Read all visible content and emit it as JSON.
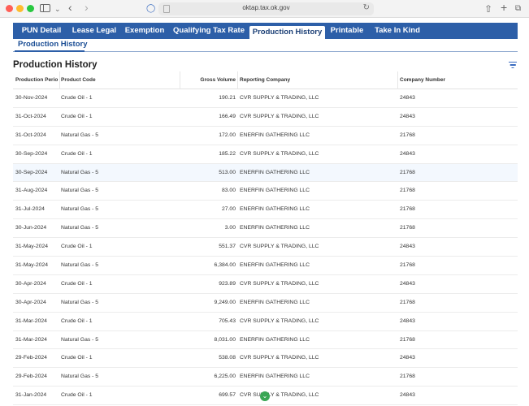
{
  "browser": {
    "url": "oktap.tax.ok.gov",
    "icons": {
      "sidebar": "sidebar-icon",
      "back": "chevron-left-icon",
      "forward": "chevron-right-icon",
      "shield": "shield-icon",
      "reload": "reload-icon",
      "share": "share-icon",
      "new_tab": "plus-icon",
      "tabs": "tabs-overview-icon"
    }
  },
  "nav": {
    "tabs": [
      {
        "label": "PUN Detail",
        "active": false
      },
      {
        "label": "Lease Legal",
        "active": false
      },
      {
        "label": "Exemption",
        "active": false
      },
      {
        "label": "Qualifying Tax Rate",
        "active": false
      },
      {
        "label": "Production History",
        "active": true
      },
      {
        "label": "Printable",
        "active": false
      },
      {
        "label": "Take In Kind",
        "active": false
      }
    ],
    "subtab": "Production History",
    "accent_color": "#2d5fa8"
  },
  "section": {
    "title": "Production History",
    "filter_icon": "filter-icon"
  },
  "table": {
    "columns": [
      "Production Perio",
      "Product Code",
      "Gross Volume",
      "Reporting Company",
      "Company Number"
    ],
    "rows": [
      {
        "date": "30-Nov-2024",
        "product": "Crude Oil - 1",
        "volume": "190.21",
        "company": "CVR SUPPLY & TRADING, LLC",
        "number": "24843"
      },
      {
        "date": "31-Oct-2024",
        "product": "Crude Oil - 1",
        "volume": "166.49",
        "company": "CVR SUPPLY & TRADING, LLC",
        "number": "24843"
      },
      {
        "date": "31-Oct-2024",
        "product": "Natural Gas - 5",
        "volume": "172.00",
        "company": "ENERFIN GATHERING LLC",
        "number": "21768"
      },
      {
        "date": "30-Sep-2024",
        "product": "Crude Oil - 1",
        "volume": "185.22",
        "company": "CVR SUPPLY & TRADING, LLC",
        "number": "24843"
      },
      {
        "date": "30-Sep-2024",
        "product": "Natural Gas - 5",
        "volume": "513.00",
        "company": "ENERFIN GATHERING LLC",
        "number": "21768",
        "highlighted": true
      },
      {
        "date": "31-Aug-2024",
        "product": "Natural Gas - 5",
        "volume": "83.00",
        "company": "ENERFIN GATHERING LLC",
        "number": "21768"
      },
      {
        "date": "31-Jul-2024",
        "product": "Natural Gas - 5",
        "volume": "27.00",
        "company": "ENERFIN GATHERING LLC",
        "number": "21768"
      },
      {
        "date": "30-Jun-2024",
        "product": "Natural Gas - 5",
        "volume": "3.00",
        "company": "ENERFIN GATHERING LLC",
        "number": "21768"
      },
      {
        "date": "31-May-2024",
        "product": "Crude Oil - 1",
        "volume": "551.37",
        "company": "CVR SUPPLY & TRADING, LLC",
        "number": "24843"
      },
      {
        "date": "31-May-2024",
        "product": "Natural Gas - 5",
        "volume": "6,384.00",
        "company": "ENERFIN GATHERING LLC",
        "number": "21768"
      },
      {
        "date": "30-Apr-2024",
        "product": "Crude Oil - 1",
        "volume": "923.89",
        "company": "CVR SUPPLY & TRADING, LLC",
        "number": "24843"
      },
      {
        "date": "30-Apr-2024",
        "product": "Natural Gas - 5",
        "volume": "9,249.00",
        "company": "ENERFIN GATHERING LLC",
        "number": "21768"
      },
      {
        "date": "31-Mar-2024",
        "product": "Crude Oil - 1",
        "volume": "705.43",
        "company": "CVR SUPPLY & TRADING, LLC",
        "number": "24843"
      },
      {
        "date": "31-Mar-2024",
        "product": "Natural Gas - 5",
        "volume": "8,031.00",
        "company": "ENERFIN GATHERING LLC",
        "number": "21768"
      },
      {
        "date": "29-Feb-2024",
        "product": "Crude Oil - 1",
        "volume": "538.08",
        "company": "CVR SUPPLY & TRADING, LLC",
        "number": "24843"
      },
      {
        "date": "29-Feb-2024",
        "product": "Natural Gas - 5",
        "volume": "6,225.00",
        "company": "ENERFIN GATHERING LLC",
        "number": "21768"
      },
      {
        "date": "31-Jan-2024",
        "product": "Crude Oil - 1",
        "volume": "699.57",
        "company": "CVR SUPPLY & TRADING, LLC",
        "number": "24843"
      }
    ]
  },
  "scroll_indicator_icon": "chevron-down-icon"
}
